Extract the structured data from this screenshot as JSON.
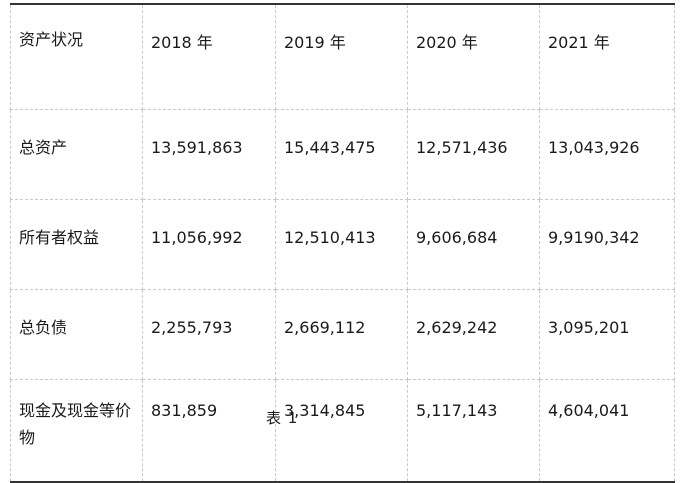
{
  "table": {
    "header": [
      "资产状况",
      "2018 年",
      "2019 年",
      "2020 年",
      "2021 年"
    ],
    "rows": [
      {
        "label": "总资产",
        "values": [
          "13,591,863",
          "15,443,475",
          "12,571,436",
          "13,043,926"
        ]
      },
      {
        "label": "所有者权益",
        "values": [
          "11,056,992",
          "12,510,413",
          "9,606,684",
          "9,9190,342"
        ]
      },
      {
        "label": "总负债",
        "values": [
          "2,255,793",
          "2,669,112",
          "2,629,242",
          "3,095,201"
        ]
      },
      {
        "label": "现金及现金等价物",
        "values": [
          "831,859",
          "3,314,845",
          "5,117,143",
          "4,604,041"
        ]
      }
    ]
  },
  "caption": "表 1"
}
